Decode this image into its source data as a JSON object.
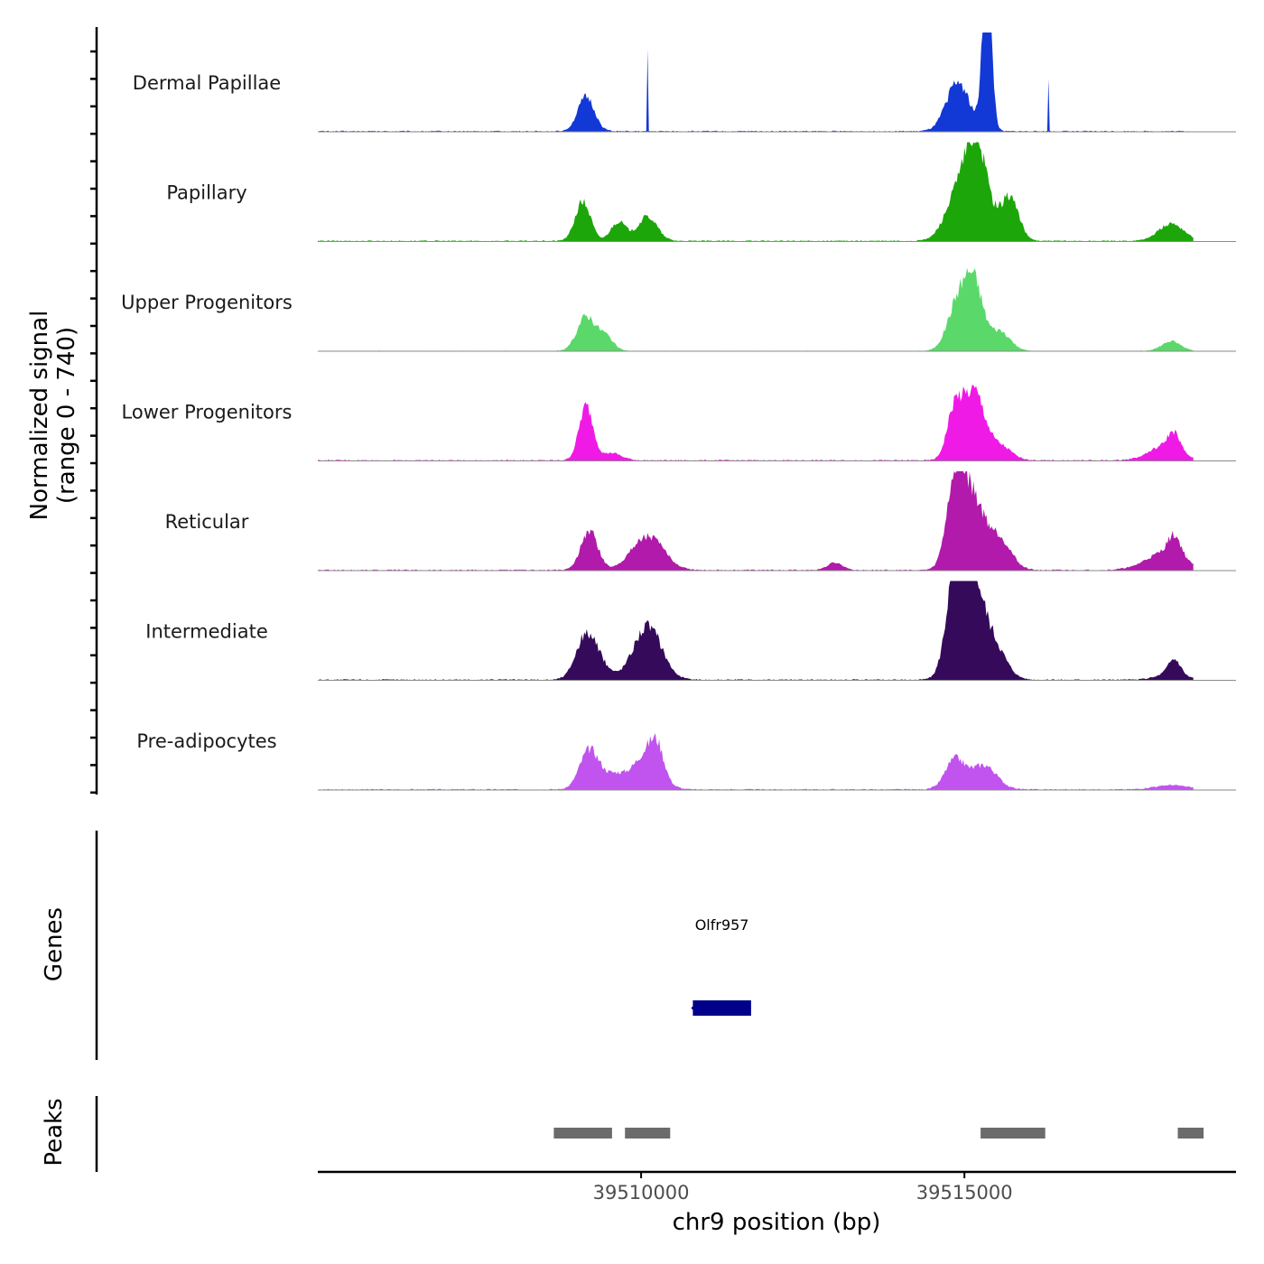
{
  "chart_data": {
    "type": "area",
    "chrom": "chr9",
    "xlim": [
      39505000,
      39519200
    ],
    "xlabel": "chr9 position (bp)",
    "ylabel_line1": "Normalized signal",
    "ylabel_line2": "(range 0 - 740)",
    "signal_range": [
      0,
      740
    ],
    "x_ticks": [
      {
        "value": 39510000,
        "label": "39510000"
      },
      {
        "value": 39515000,
        "label": "39515000"
      }
    ],
    "tracks": [
      {
        "name": "Dermal Papillae",
        "color": "#1238d6",
        "peaks": [
          [
            39509150,
            35,
            130
          ],
          [
            39514900,
            50,
            180
          ],
          [
            39515350,
            160,
            70
          ],
          [
            39510100,
            80,
            4
          ],
          [
            39516300,
            60,
            5
          ]
        ],
        "noise": 2
      },
      {
        "name": "Papillary",
        "color": "#1ca60a",
        "peaks": [
          [
            39509100,
            40,
            120
          ],
          [
            39509650,
            20,
            120
          ],
          [
            39510100,
            25,
            150
          ],
          [
            39514900,
            45,
            200
          ],
          [
            39515200,
            90,
            170
          ],
          [
            39515700,
            45,
            140
          ],
          [
            39518200,
            18,
            200
          ]
        ],
        "noise": 2
      },
      {
        "name": "Upper Progenitors",
        "color": "#5ad96a",
        "peaks": [
          [
            39509150,
            35,
            140
          ],
          [
            39509450,
            15,
            120
          ],
          [
            39514900,
            48,
            160
          ],
          [
            39515150,
            62,
            140
          ],
          [
            39515550,
            20,
            160
          ],
          [
            39518200,
            10,
            150
          ]
        ],
        "noise": 1
      },
      {
        "name": "Lower Progenitors",
        "color": "#f01ae6",
        "peaks": [
          [
            39509150,
            55,
            110
          ],
          [
            39509550,
            8,
            150
          ],
          [
            39514850,
            50,
            120
          ],
          [
            39515150,
            68,
            160
          ],
          [
            39515550,
            15,
            180
          ],
          [
            39518100,
            15,
            250
          ],
          [
            39518240,
            17,
            90
          ]
        ],
        "noise": 2
      },
      {
        "name": "Reticular",
        "color": "#b11aaa",
        "peaks": [
          [
            39509200,
            40,
            130
          ],
          [
            39510100,
            35,
            250
          ],
          [
            39514850,
            72,
            130
          ],
          [
            39515100,
            75,
            200
          ],
          [
            39515550,
            30,
            180
          ],
          [
            39518100,
            18,
            300
          ],
          [
            39518250,
            20,
            100
          ],
          [
            39513000,
            8,
            120
          ]
        ],
        "noise": 2
      },
      {
        "name": "Intermediate",
        "color": "#360a5a",
        "peaks": [
          [
            39509150,
            45,
            160
          ],
          [
            39509400,
            10,
            150
          ],
          [
            39510100,
            55,
            220
          ],
          [
            39514900,
            100,
            150
          ],
          [
            39515100,
            100,
            210
          ],
          [
            39515500,
            25,
            180
          ],
          [
            39518200,
            8,
            200
          ],
          [
            39518250,
            14,
            90
          ]
        ],
        "noise": 2
      },
      {
        "name": "Pre-adipocytes",
        "color": "#c153ef",
        "peaks": [
          [
            39509200,
            40,
            150
          ],
          [
            39509600,
            15,
            180
          ],
          [
            39510100,
            38,
            200
          ],
          [
            39510250,
            22,
            100
          ],
          [
            39514850,
            30,
            150
          ],
          [
            39515300,
            25,
            200
          ],
          [
            39518200,
            5,
            250
          ]
        ],
        "noise": 2
      }
    ],
    "genes": [
      {
        "name": "Olfr957",
        "start": 39510800,
        "end": 39511700,
        "strand": "-",
        "color": "#00008b"
      }
    ],
    "peaks": [
      {
        "start": 39508650,
        "end": 39509550
      },
      {
        "start": 39509750,
        "end": 39510450
      },
      {
        "start": 39515250,
        "end": 39516250
      },
      {
        "start": 39518300,
        "end": 39518700
      }
    ],
    "panels": {
      "genes_label": "Genes",
      "peaks_label": "Peaks"
    }
  }
}
